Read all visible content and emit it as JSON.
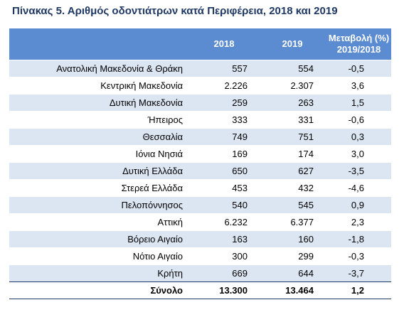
{
  "title": "Πίνακας 5. Αριθμός οδοντιάτρων κατά Περιφέρεια, 2018 και 2019",
  "table": {
    "header": {
      "year1": "2018",
      "year2": "2019",
      "change": [
        "Μεταβολή (%)",
        "2019/2018"
      ]
    },
    "rows": [
      [
        "Ανατολική Μακεδονία & Θράκη",
        "557",
        "554",
        "-0,5"
      ],
      [
        "Κεντρική Μακεδονία",
        "2.226",
        "2.307",
        "3,6"
      ],
      [
        "Δυτική Μακεδονία",
        "259",
        "263",
        "1,5"
      ],
      [
        "Ήπειρος",
        "333",
        "331",
        "-0,6"
      ],
      [
        "Θεσσαλία",
        "749",
        "751",
        "0,3"
      ],
      [
        "Ιόνια Νησιά",
        "169",
        "174",
        "3,0"
      ],
      [
        "Δυτική Ελλάδα",
        "650",
        "627",
        "-3,5"
      ],
      [
        "Στερεά Ελλάδα",
        "453",
        "432",
        "-4,6"
      ],
      [
        "Πελοπόννησος",
        "540",
        "545",
        "0,9"
      ],
      [
        "Αττική",
        "6.232",
        "6.377",
        "2,3"
      ],
      [
        "Βόρειο Αιγαίο",
        "163",
        "160",
        "-1,8"
      ],
      [
        "Νότιο Αιγαίο",
        "300",
        "299",
        "-0,3"
      ],
      [
        "Κρήτη",
        "669",
        "644",
        "-3,7"
      ]
    ],
    "total": [
      "Σύνολο",
      "13.300",
      "13.464",
      "1,2"
    ]
  }
}
